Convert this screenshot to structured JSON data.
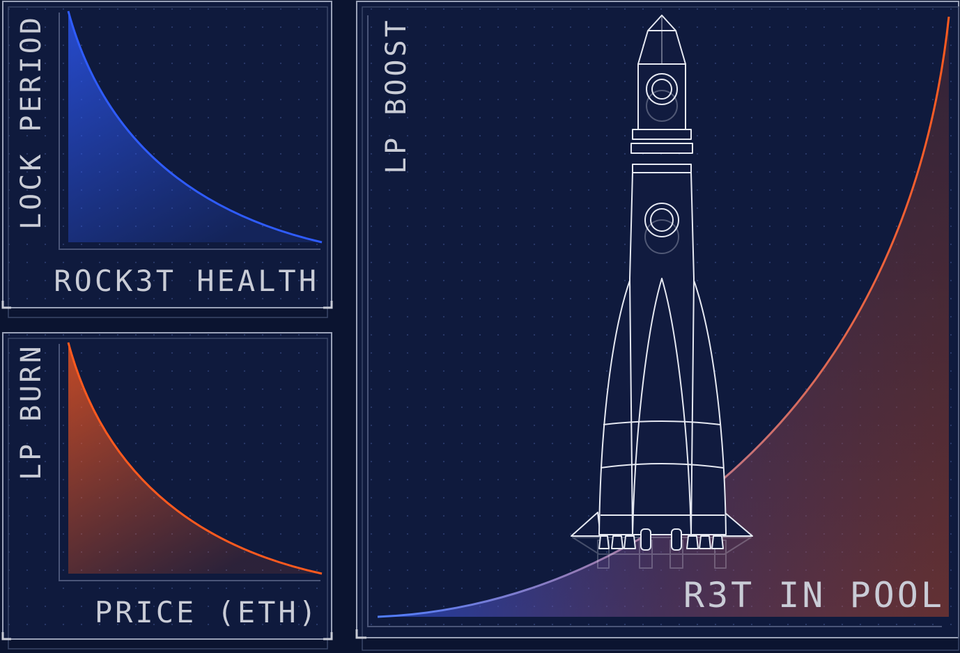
{
  "colors": {
    "background": "#0b1430",
    "panel": "#0f1a3d",
    "frame": "#9aa2b8",
    "blue": "#2f5cff",
    "orange": "#ff5a1f",
    "rocket_line": "#e6e9f2",
    "label": "#c9ccd6"
  },
  "panels": [
    {
      "id": "lock-period",
      "ylabel": "LOCK PERIOD",
      "xlabel": "ROCK3T HEALTH",
      "curve": "decay",
      "color": "blue"
    },
    {
      "id": "lp-burn",
      "ylabel": "LP BURN",
      "xlabel": "PRICE (ETH)",
      "curve": "decay",
      "color": "orange"
    },
    {
      "id": "lp-boost",
      "ylabel": "LP BOOST",
      "xlabel": "R3T IN POOL",
      "curve": "growth",
      "color": "blue-to-orange"
    }
  ],
  "illustration": {
    "icon": "rocket-icon"
  }
}
